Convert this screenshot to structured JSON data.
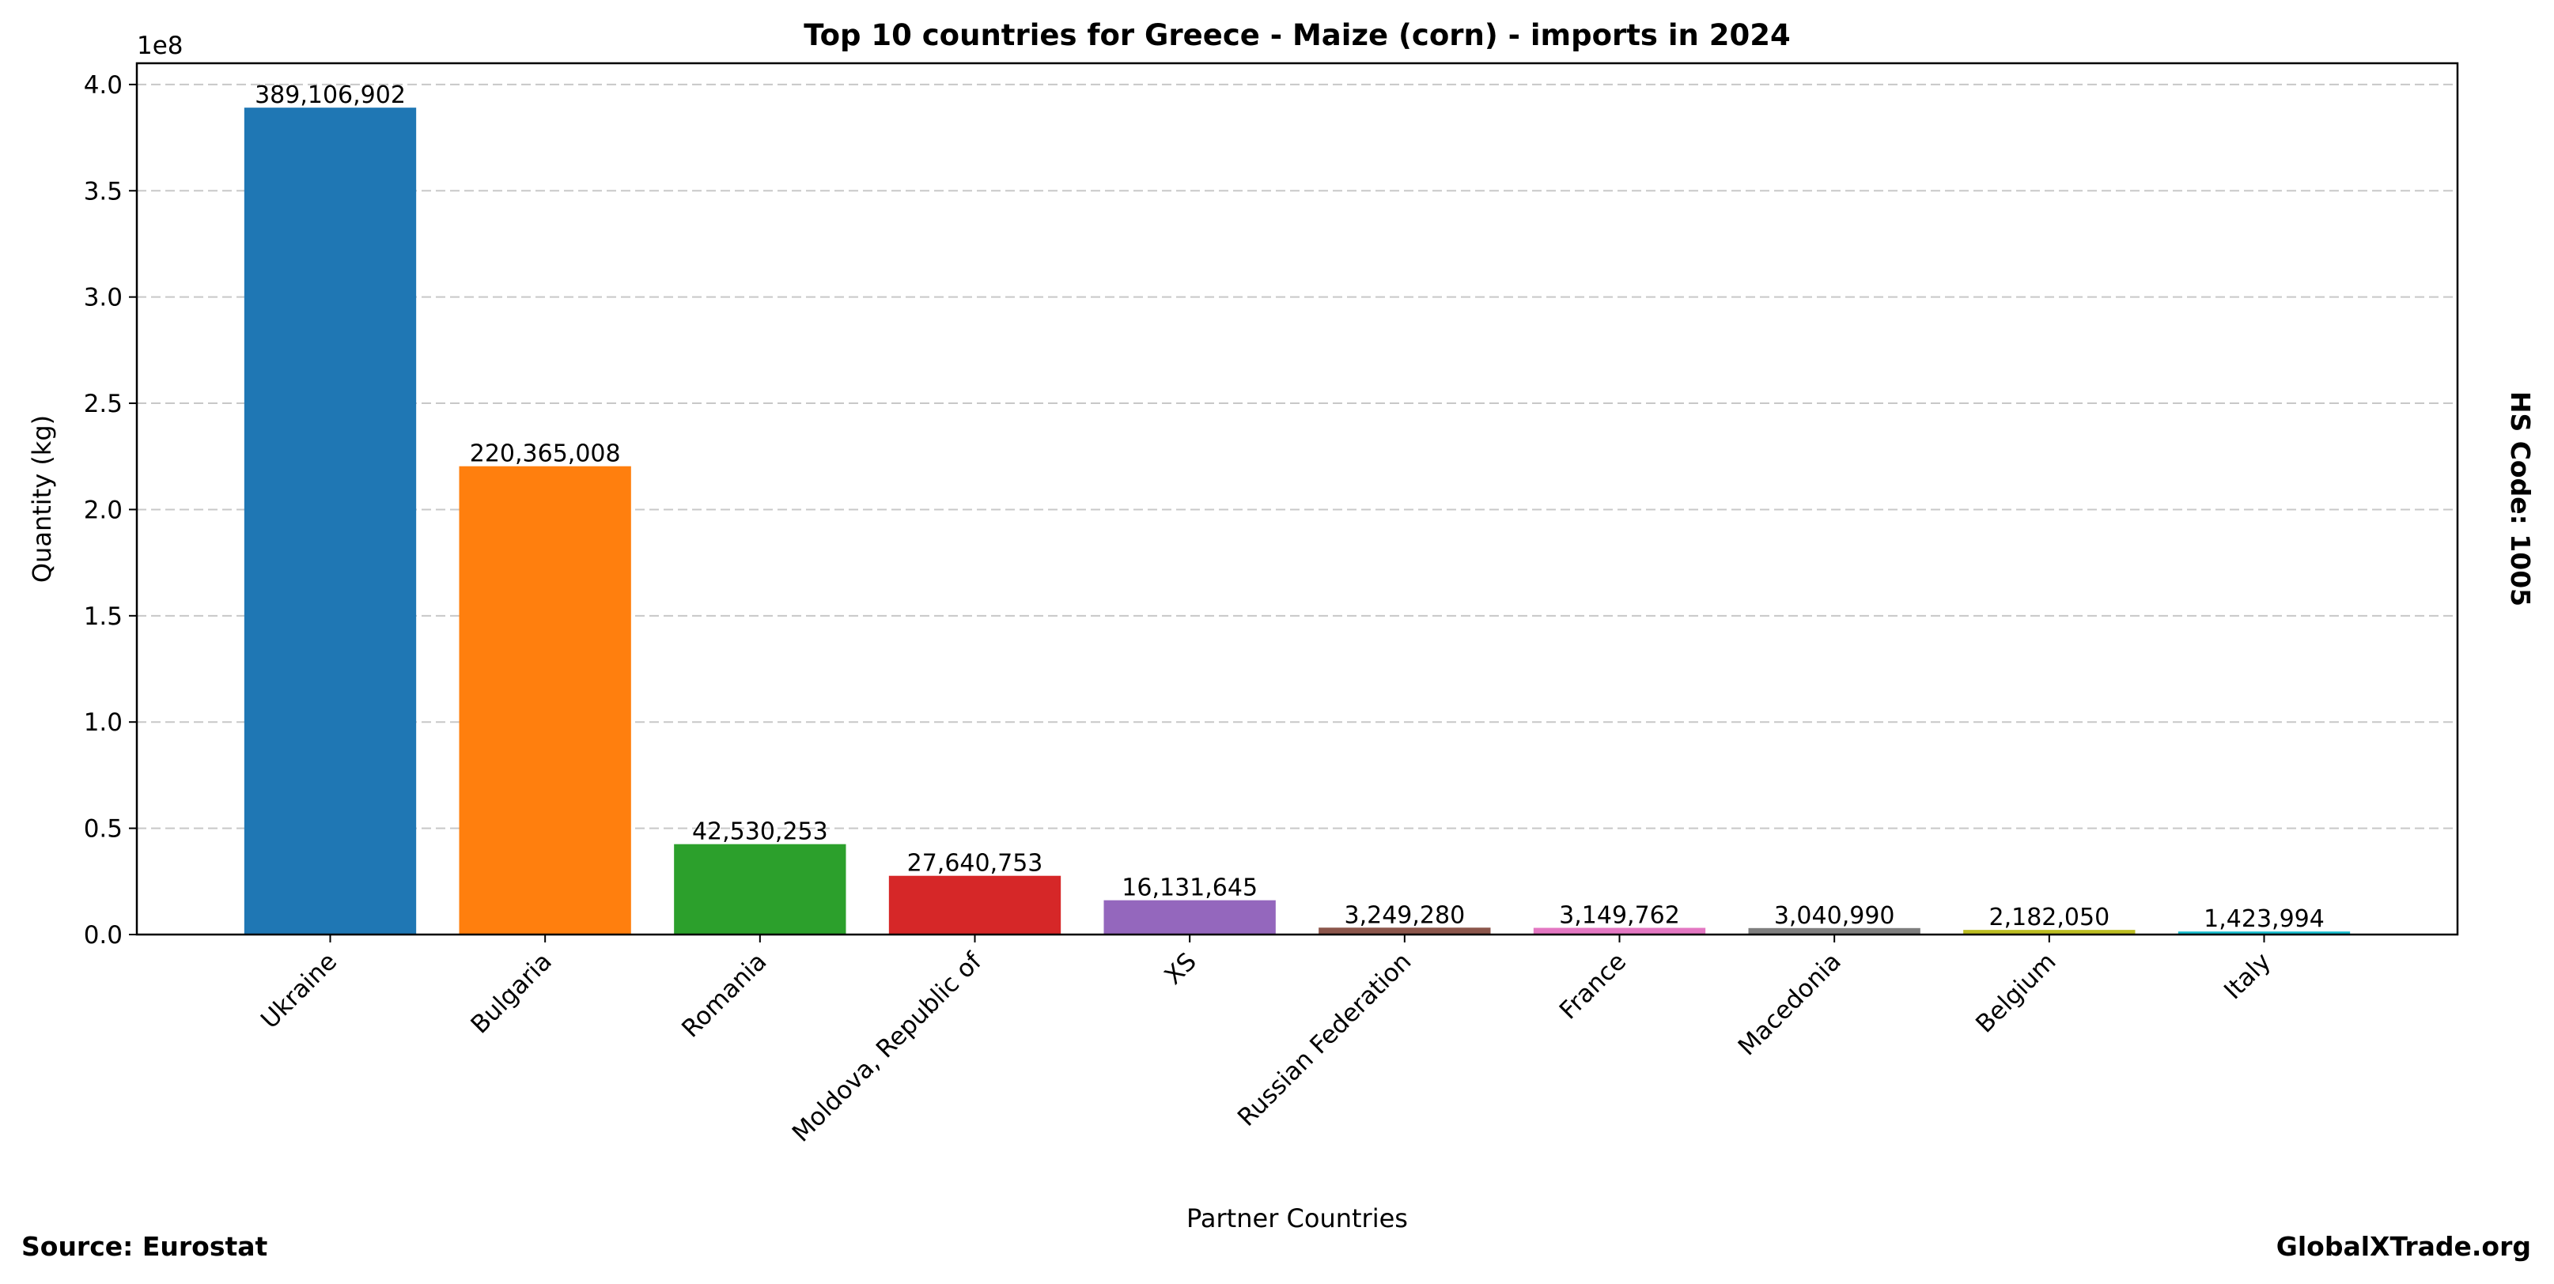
{
  "chart_data": {
    "type": "bar",
    "title": "Top 10 countries for Greece - Maize (corn) - imports in 2024",
    "xlabel": "Partner Countries",
    "ylabel": "Quantity (kg)",
    "y_offset_label": "1e8",
    "ylim": [
      0,
      410000000
    ],
    "xlim": [
      -0.9,
      9.9
    ],
    "grid": "y dashed",
    "yticks": [
      0,
      50000000,
      100000000,
      150000000,
      200000000,
      250000000,
      300000000,
      350000000,
      400000000
    ],
    "ytick_labels": [
      "0.0",
      "0.5",
      "1.0",
      "1.5",
      "2.0",
      "2.5",
      "3.0",
      "3.5",
      "4.0"
    ],
    "categories": [
      "Ukraine",
      "Bulgaria",
      "Romania",
      "Moldova, Republic of",
      "XS",
      "Russian Federation",
      "France",
      "Macedonia",
      "Belgium",
      "Italy"
    ],
    "values": [
      389106902,
      220365008,
      42530253,
      27640753,
      16131645,
      3249280,
      3149762,
      3040990,
      2182050,
      1423994
    ],
    "value_labels": [
      "389,106,902",
      "220,365,008",
      "42,530,253",
      "27,640,753",
      "16,131,645",
      "3,249,280",
      "3,149,762",
      "3,040,990",
      "2,182,050",
      "1,423,994"
    ],
    "colors": [
      "#1f77b4",
      "#ff7f0e",
      "#2ca02c",
      "#d62728",
      "#9467bd",
      "#8c564b",
      "#e377c2",
      "#7f7f7f",
      "#bcbd22",
      "#17becf"
    ],
    "side_label": "HS Code: 1005",
    "source": "Source: Eurostat",
    "watermark": "GlobalXTrade.org"
  }
}
